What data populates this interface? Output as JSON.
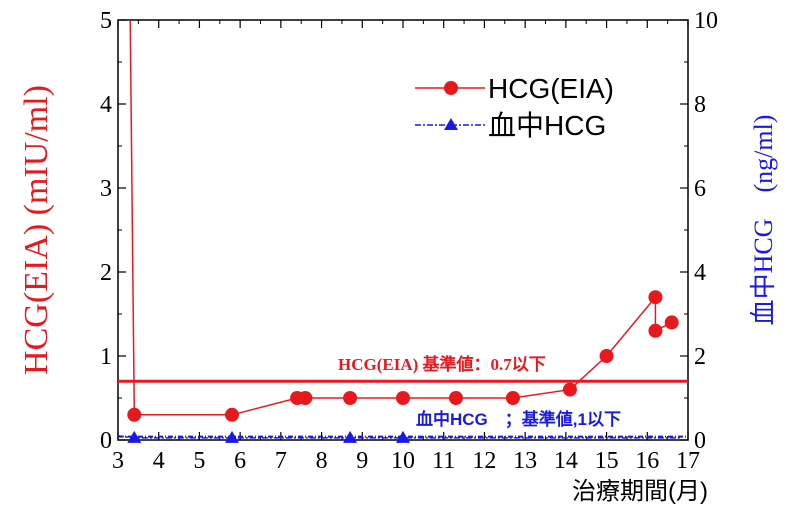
{
  "chart_data": {
    "type": "line",
    "title": "",
    "xlabel": "治療期間(月)",
    "ylabel_left": "HCG(EIA) (mIU/ml)",
    "ylabel_right": "血中HCG　(ng/ml)",
    "xlim": [
      3,
      17
    ],
    "ylim_left": [
      0,
      5
    ],
    "ylim_right": [
      0,
      10
    ],
    "x_ticks": [
      "3",
      "4",
      "5",
      "6",
      "7",
      "8",
      "9",
      "10",
      "11",
      "12",
      "13",
      "14",
      "15",
      "16",
      "17"
    ],
    "y_ticks_left": [
      "0",
      "1",
      "2",
      "3",
      "4",
      "5"
    ],
    "y_ticks_right": [
      "0",
      "2",
      "4",
      "6",
      "8",
      "10"
    ],
    "grid": false,
    "legend_position": "top-right",
    "series": [
      {
        "name": "HCG(EIA)",
        "axis": "left",
        "color": "#e8191e",
        "marker": "circle",
        "points": [
          {
            "x": 3.3,
            "y": 5.0,
            "marker": false
          },
          {
            "x": 3.4,
            "y": 0.3
          },
          {
            "x": 5.8,
            "y": 0.3
          },
          {
            "x": 7.4,
            "y": 0.5
          },
          {
            "x": 7.6,
            "y": 0.5
          },
          {
            "x": 8.7,
            "y": 0.5
          },
          {
            "x": 10.0,
            "y": 0.5
          },
          {
            "x": 11.3,
            "y": 0.5
          },
          {
            "x": 12.7,
            "y": 0.5
          },
          {
            "x": 14.1,
            "y": 0.6
          },
          {
            "x": 15.0,
            "y": 1.0
          },
          {
            "x": 16.2,
            "y": 1.7
          },
          {
            "x": 16.2,
            "y": 1.3
          },
          {
            "x": 16.6,
            "y": 1.4
          }
        ]
      },
      {
        "name": "血中HCG",
        "axis": "right",
        "color": "#1a1ae6",
        "marker": "triangle",
        "points": [
          {
            "x": 3.0,
            "y": 0.1,
            "marker": false
          },
          {
            "x": 3.4,
            "y": 0.05
          },
          {
            "x": 5.8,
            "y": 0.05
          },
          {
            "x": 8.7,
            "y": 0.05
          },
          {
            "x": 10.0,
            "y": 0.05
          },
          {
            "x": 16.8,
            "y": 0.05,
            "marker": false
          }
        ]
      }
    ],
    "reference_lines": [
      {
        "axis": "left",
        "value": 0.7,
        "color": "#e8191e",
        "label": "HCG(EIA) 基準値：0.7以下"
      },
      {
        "axis": "right",
        "value": 0.08,
        "color": "#1a1ae6",
        "label": "血中HCG　；基準値,1以下"
      }
    ]
  }
}
